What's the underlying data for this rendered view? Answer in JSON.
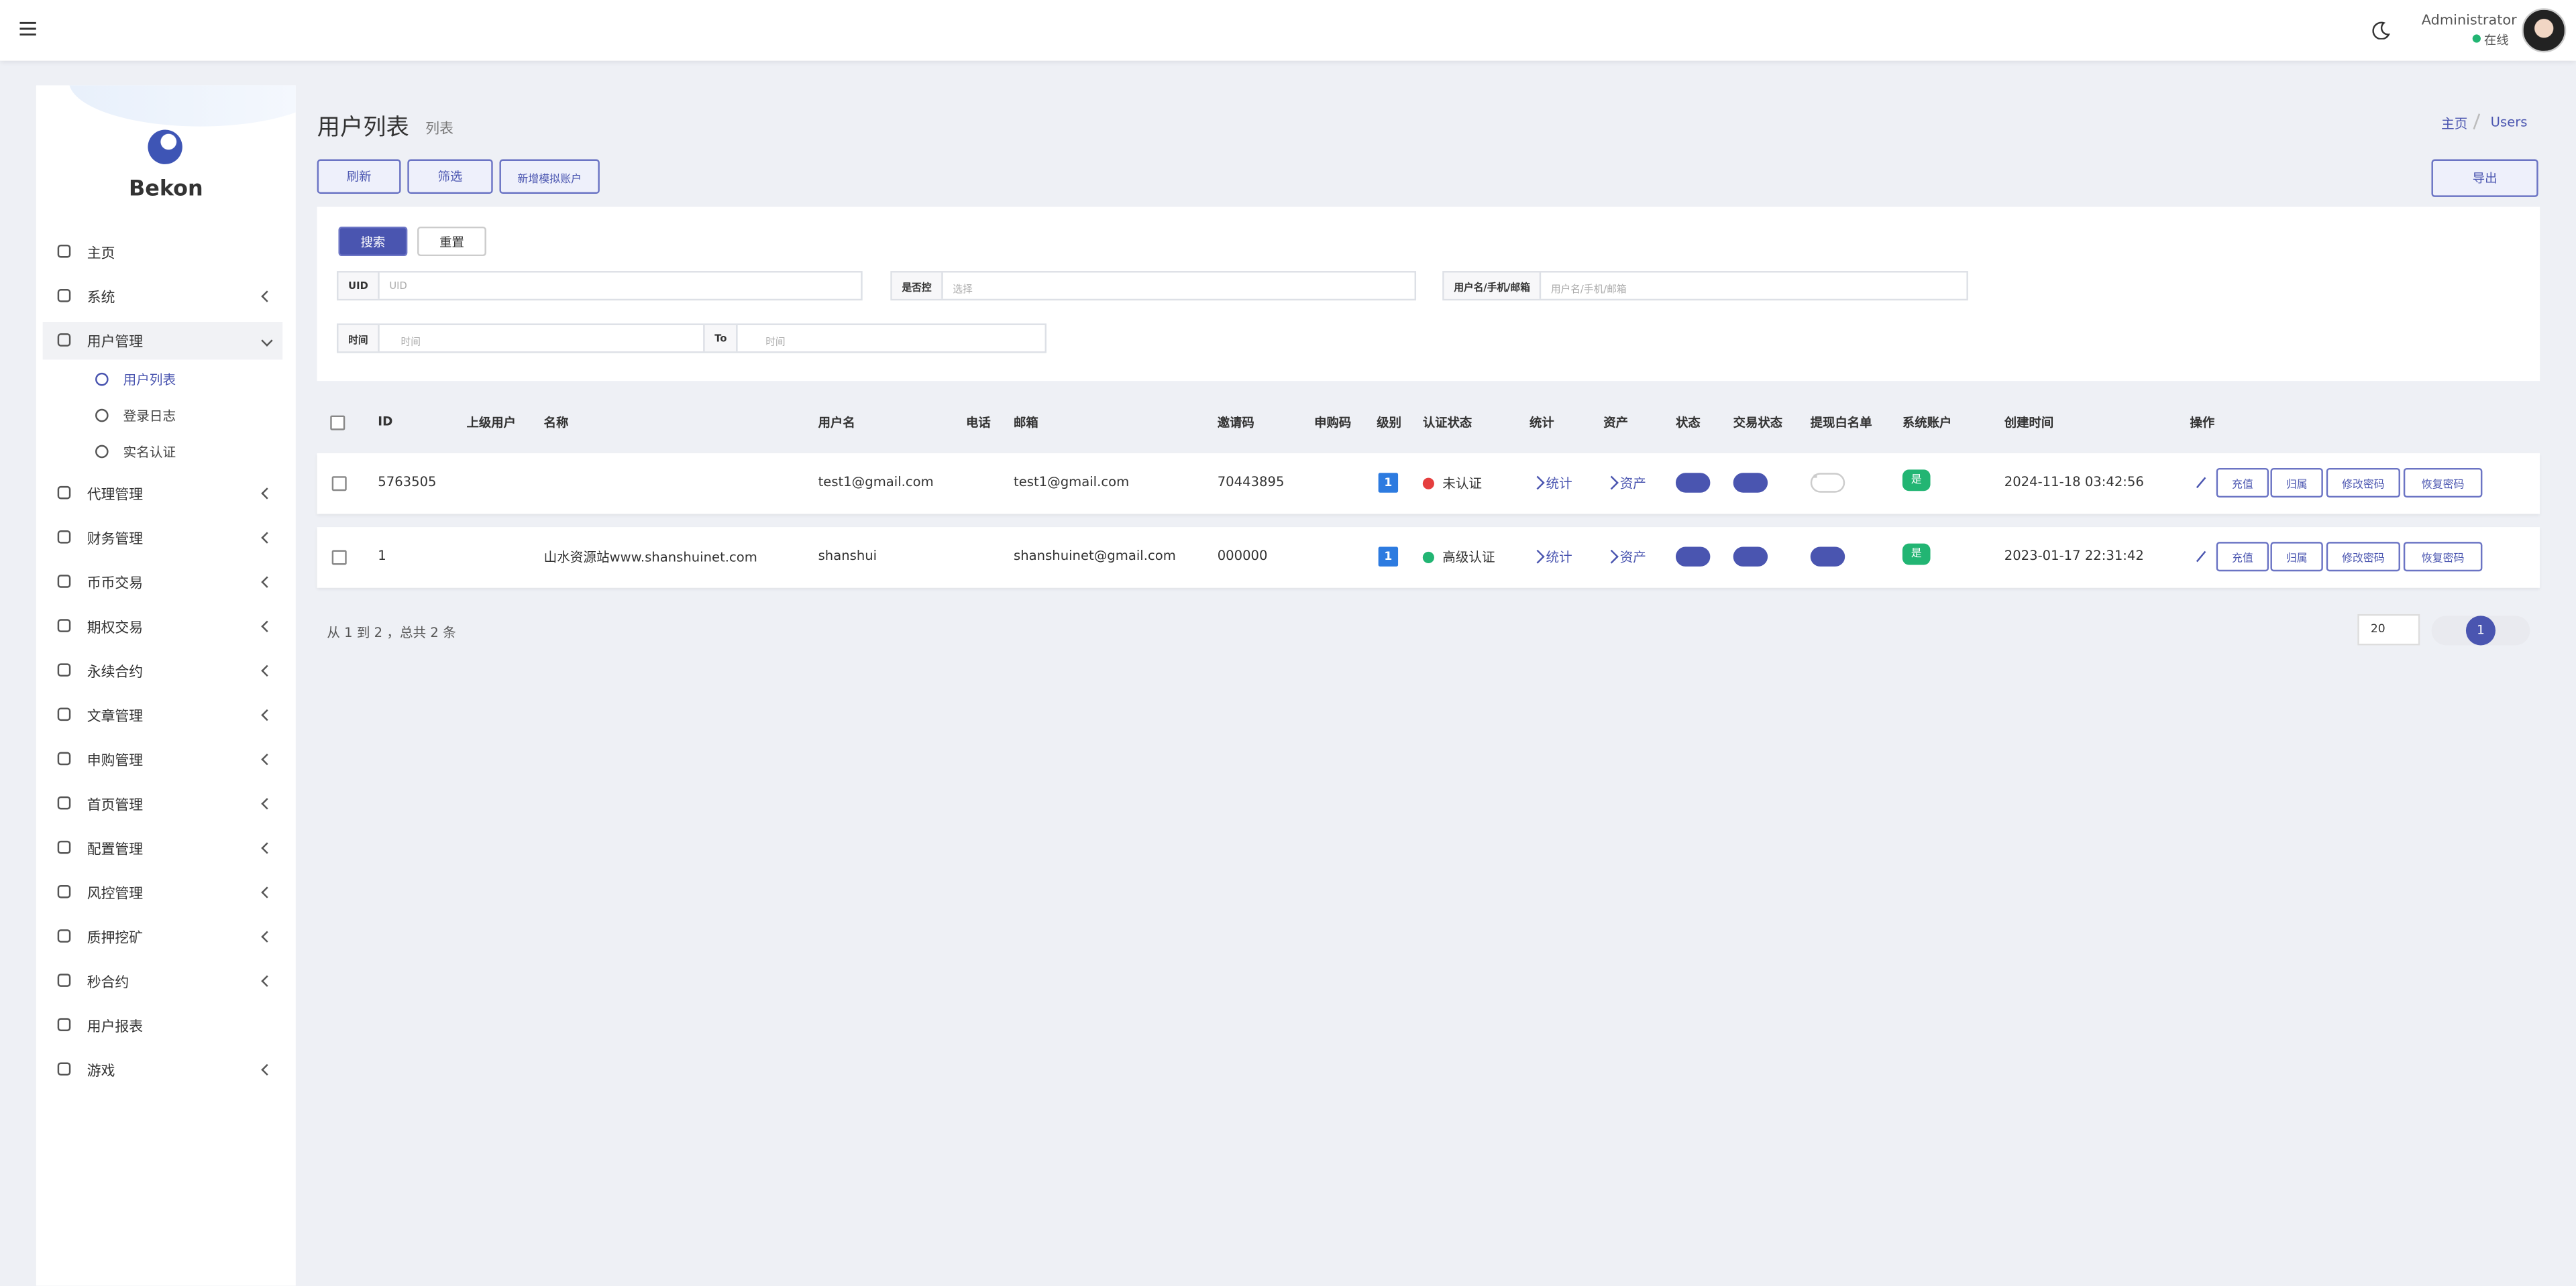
{
  "header": {
    "user_name": "Administrator",
    "user_status": "在线"
  },
  "sidebar": {
    "brand": "Bekon",
    "menu": [
      {
        "label": "主页",
        "arrow": false
      },
      {
        "label": "系统",
        "arrow": true
      },
      {
        "label": "用户管理",
        "arrow": true,
        "open": true,
        "children": [
          "用户列表",
          "登录日志",
          "实名认证"
        ]
      },
      {
        "label": "代理管理",
        "arrow": true
      },
      {
        "label": "财务管理",
        "arrow": true
      },
      {
        "label": "币币交易",
        "arrow": true
      },
      {
        "label": "期权交易",
        "arrow": true
      },
      {
        "label": "永续合约",
        "arrow": true
      },
      {
        "label": "文章管理",
        "arrow": true
      },
      {
        "label": "申购管理",
        "arrow": true
      },
      {
        "label": "首页管理",
        "arrow": true
      },
      {
        "label": "配置管理",
        "arrow": true
      },
      {
        "label": "风控管理",
        "arrow": true
      },
      {
        "label": "质押挖矿",
        "arrow": true
      },
      {
        "label": "秒合约",
        "arrow": true
      },
      {
        "label": "用户报表",
        "arrow": false
      },
      {
        "label": "游戏",
        "arrow": true
      }
    ]
  },
  "page": {
    "title": "用户列表",
    "subtitle": "列表",
    "breadcrumb": [
      "主页",
      "Users"
    ],
    "toolbar": [
      "刷新",
      "筛选",
      "新增模拟账户"
    ],
    "export": "导出",
    "filter": {
      "search": "搜索",
      "reset": "重置",
      "fields": [
        {
          "label": "UID",
          "placeholder": "UID"
        },
        {
          "label": "是否控",
          "placeholder": "选择"
        },
        {
          "label": "用户名/手机/邮箱",
          "placeholder": "用户名/手机/邮箱"
        }
      ],
      "time": {
        "label": "时间",
        "placeholder": "时间",
        "to": "To",
        "placeholder2": "时间"
      }
    },
    "table": {
      "columns": [
        "ID",
        "上级用户",
        "名称",
        "用户名",
        "电话",
        "邮箱",
        "邀请码",
        "申购码",
        "级别",
        "认证状态",
        "统计",
        "资产",
        "状态",
        "交易状态",
        "提现白名单",
        "系统账户",
        "创建时间",
        "操作"
      ],
      "actions": [
        "充值",
        "归属",
        "修改密码",
        "恢复密码"
      ],
      "rows": [
        {
          "id": "5763505",
          "parent": null,
          "name": null,
          "username": "test1@gmail.com",
          "phone": null,
          "email": "test1@gmail.com",
          "invite": "70443895",
          "purchase": null,
          "level": "1",
          "auth": "未认证",
          "auth_color": "#e53e3e",
          "stat": "统计",
          "asset": "资产",
          "status": true,
          "trade": true,
          "whitelist": false,
          "system": "是",
          "created": "2024-11-18 03:42:56"
        },
        {
          "id": "1",
          "parent": null,
          "name": "山水资源站www.shanshuinet.com",
          "username": "shanshui",
          "phone": null,
          "email": "shanshuinet@gmail.com",
          "invite": "000000",
          "purchase": null,
          "level": "1",
          "auth": "高级认证",
          "auth_color": "#22b573",
          "stat": "统计",
          "asset": "资产",
          "status": true,
          "trade": true,
          "whitelist": true,
          "system": "是",
          "created": "2023-01-17 22:31:42"
        }
      ]
    },
    "pagination": {
      "summary": "从 1 到 2 ，总共 2 条",
      "page_size": "20",
      "current": "1"
    }
  }
}
